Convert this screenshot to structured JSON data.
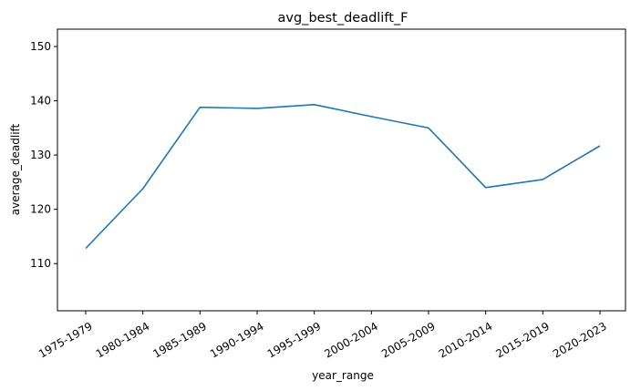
{
  "chart_data": {
    "type": "line",
    "title": "avg_best_deadlift_F",
    "xlabel": "year_range",
    "ylabel": "average_deadlift",
    "categories": [
      "1975-1979",
      "1980-1984",
      "1985-1989",
      "1990-1994",
      "1995-1999",
      "2000-2004",
      "2005-2009",
      "2010-2014",
      "2015-2019",
      "2020-2023"
    ],
    "series": [
      {
        "color": "#1f77b4",
        "values": [
          112.8,
          123.8,
          138.8,
          138.6,
          139.3,
          137.1,
          135.0,
          124.0,
          125.5,
          131.7
        ]
      }
    ],
    "ylim": [
      101.3,
      153.2
    ],
    "yticks": [
      110,
      120,
      130,
      140,
      150
    ],
    "grid": false,
    "legend": false
  }
}
